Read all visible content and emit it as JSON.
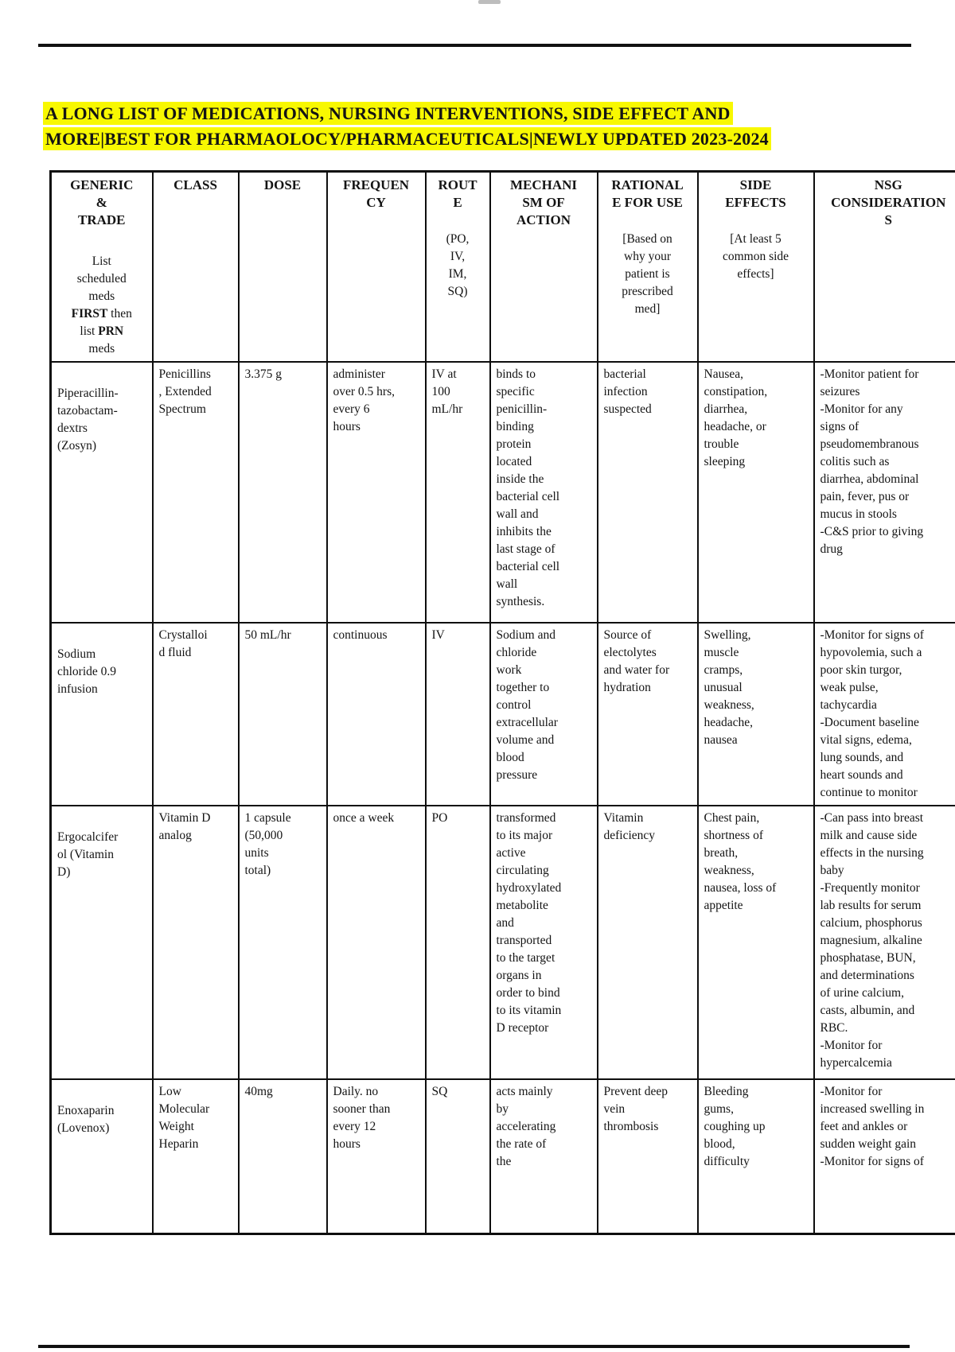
{
  "title": {
    "text": "A LONG LIST OF MEDICATIONS, NURSING INTERVENTIONS, SIDE EFFECT AND\nMORE|BEST FOR PHARMAOLOCY/PHARMACEUTICALS|NEWLY UPDATED 2023-2024",
    "highlight_color": "#f8f801"
  },
  "table": {
    "headers": [
      {
        "title": "GENERIC\n&\nTRADE",
        "note_segments": [
          {
            "text": "List\nscheduled\nmeds\n",
            "bold": false
          },
          {
            "text": "FIRST",
            "bold": true
          },
          {
            "text": " then\nlist ",
            "bold": false
          },
          {
            "text": "PRN",
            "bold": true
          },
          {
            "text": "\nmeds",
            "bold": false
          }
        ]
      },
      {
        "title": "CLASS"
      },
      {
        "title": "DOSE"
      },
      {
        "title": "FREQUEN\nCY"
      },
      {
        "title": "ROUT\nE",
        "note_segments": [
          {
            "text": "(PO,\nIV,\nIM,\nSQ)",
            "bold": false
          }
        ]
      },
      {
        "title": "MECHANI\nSM OF\nACTION"
      },
      {
        "title": "RATIONAL\nE FOR USE",
        "note_segments": [
          {
            "text": "[Based on\nwhy your\npatient is\nprescribed\nmed]",
            "bold": false
          }
        ]
      },
      {
        "title": "SIDE\nEFFECTS",
        "note_segments": [
          {
            "text": "[At least 5\ncommon side\neffects]",
            "bold": false
          }
        ]
      },
      {
        "title": "NSG\nCONSIDERATION\nS"
      }
    ],
    "rows": [
      [
        "Piperacillin-\ntazobactam-\ndextrs\n(Zosyn)",
        "Penicillins\n, Extended\nSpectrum",
        "3.375 g",
        "administer\nover 0.5 hrs,\nevery 6\nhours",
        "IV at\n100\nmL/hr",
        "binds to\nspecific\npenicillin-\nbinding\nprotein\nlocated\ninside the\nbacterial cell\nwall and\ninhibits the\nlast stage of\nbacterial cell\nwall\nsynthesis.",
        "bacterial\ninfection\nsuspected",
        "Nausea,\nconstipation,\ndiarrhea,\nheadache, or\ntrouble\nsleeping",
        "-Monitor patient for\nseizures\n-Monitor for any\nsigns of\npseudomembranous\ncolitis such as\ndiarrhea, abdominal\npain, fever, pus or\nmucus in stools\n-C&S prior to giving\ndrug"
      ],
      [
        "Sodium\nchloride 0.9\ninfusion",
        "Crystalloi\nd fluid",
        "50 mL/hr",
        "continuous",
        "IV",
        "Sodium and\nchloride\nwork\ntogether to\ncontrol\nextracellular\nvolume and\nblood\npressure",
        "Source of\nelectolytes\nand water for\nhydration",
        "Swelling,\nmuscle\ncramps,\nunusual\nweakness,\nheadache,\nnausea",
        "-Monitor for signs of\nhypovolemia, such a\npoor skin turgor,\nweak pulse,\ntachycardia\n-Document baseline\nvital signs, edema,\nlung sounds, and\nheart sounds and\ncontinue to monitor"
      ],
      [
        "Ergocalcifer\nol (Vitamin\nD)",
        "Vitamin D\nanalog",
        "1 capsule\n(50,000\nunits\ntotal)",
        "once a week",
        "PO",
        "transformed\nto its major\nactive\ncirculating\nhydroxylated\nmetabolite\nand\ntransported\nto the target\norgans in\norder to bind\nto its vitamin\nD receptor",
        "Vitamin\ndeficiency",
        "Chest pain,\nshortness of\nbreath,\nweakness,\nnausea, loss of\nappetite",
        "-Can pass into breast\nmilk and cause side\neffects in the nursing\nbaby\n-Frequently monitor\nlab results for serum\ncalcium, phosphorus\nmagnesium, alkaline\nphosphatase, BUN,\nand determinations\nof urine calcium,\ncasts, albumin, and\nRBC.\n-Monitor for\nhypercalcemia"
      ],
      [
        "Enoxaparin\n(Lovenox)",
        "Low\nMolecular\nWeight\nHeparin",
        "40mg",
        "Daily. no\nsooner than\nevery 12\nhours",
        "SQ",
        "acts mainly\nby\naccelerating\nthe rate of\nthe",
        "Prevent deep\nvein\nthrombosis",
        "Bleeding\ngums,\ncoughing up\nblood,\ndifficulty",
        "-Monitor for\nincreased swelling in\nfeet and ankles or\nsudden weight gain\n-Monitor for signs of"
      ]
    ]
  }
}
